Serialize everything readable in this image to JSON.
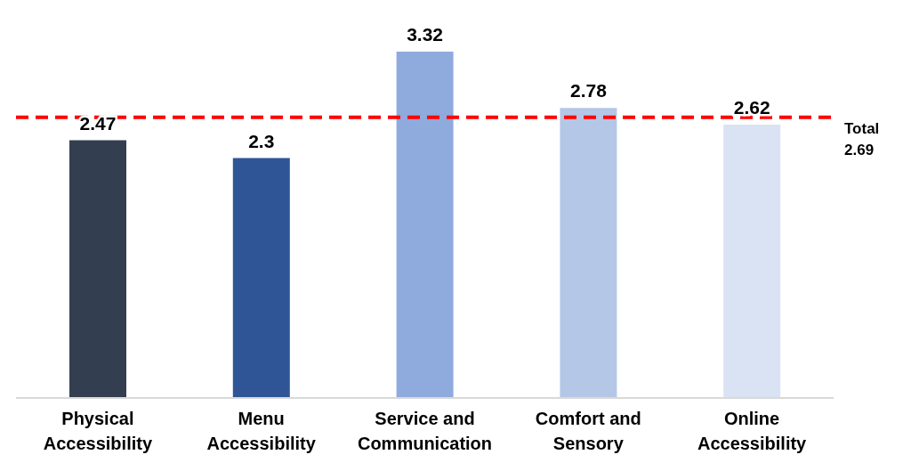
{
  "chart_data": {
    "type": "bar",
    "categories": [
      "Physical Accessibility",
      "Menu Accessibility",
      "Service and Communication",
      "Comfort and Sensory",
      "Online Accessibility"
    ],
    "values": [
      2.47,
      2.3,
      3.32,
      2.78,
      2.62
    ],
    "colors": [
      "#333f50",
      "#2f5597",
      "#8faadc",
      "#b4c7e7",
      "#dae3f3"
    ],
    "data_labels": true,
    "ref_lines": [
      {
        "axis": "y",
        "value": 2.69,
        "label": "Total 2.69",
        "color": "#ff0000",
        "line_style": "dashed"
      }
    ]
  }
}
